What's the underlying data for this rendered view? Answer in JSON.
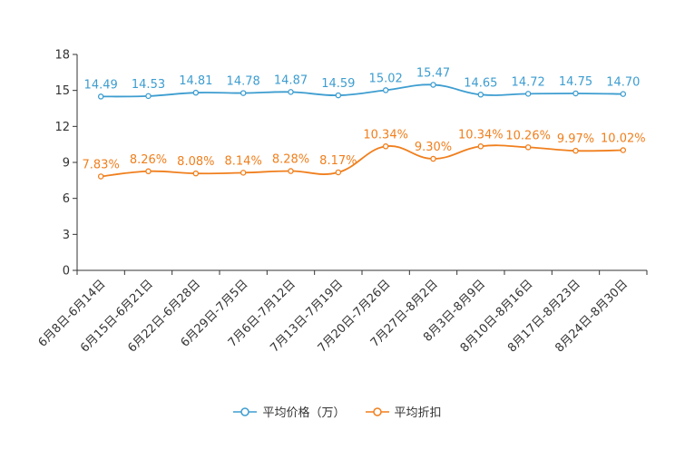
{
  "chart_data": {
    "type": "line",
    "categories": [
      "6月8日-6月14日",
      "6月15日-6月21日",
      "6月22日-6月28日",
      "6月29日-7月5日",
      "7月6日-7月12日",
      "7月13日-7月19日",
      "7月20日-7月26日",
      "7月27日-8月2日",
      "8月3日-8月9日",
      "8月10日-8月16日",
      "8月17日-8月23日",
      "8月24日-8月30日"
    ],
    "series": [
      {
        "name": "平均价格（万）",
        "values": [
          14.49,
          14.53,
          14.81,
          14.78,
          14.87,
          14.59,
          15.02,
          15.47,
          14.65,
          14.72,
          14.75,
          14.7
        ],
        "labels": [
          "14.49",
          "14.53",
          "14.81",
          "14.78",
          "14.87",
          "14.59",
          "15.02",
          "15.47",
          "14.65",
          "14.72",
          "14.75",
          "14.70"
        ],
        "color": "#3d9dd0"
      },
      {
        "name": "平均折扣",
        "values": [
          7.83,
          8.26,
          8.08,
          8.14,
          8.28,
          8.17,
          10.34,
          9.3,
          10.34,
          10.26,
          9.97,
          10.02
        ],
        "labels": [
          "7.83%",
          "8.26%",
          "8.08%",
          "8.14%",
          "8.28%",
          "8.17%",
          "10.34%",
          "9.30%",
          "10.34%",
          "10.26%",
          "9.97%",
          "10.02%"
        ],
        "color": "#f07f1d"
      }
    ],
    "yticks": [
      "0",
      "3",
      "6",
      "9",
      "12",
      "15",
      "18"
    ],
    "ylim": [
      0,
      18
    ],
    "legend_position": "bottom"
  }
}
